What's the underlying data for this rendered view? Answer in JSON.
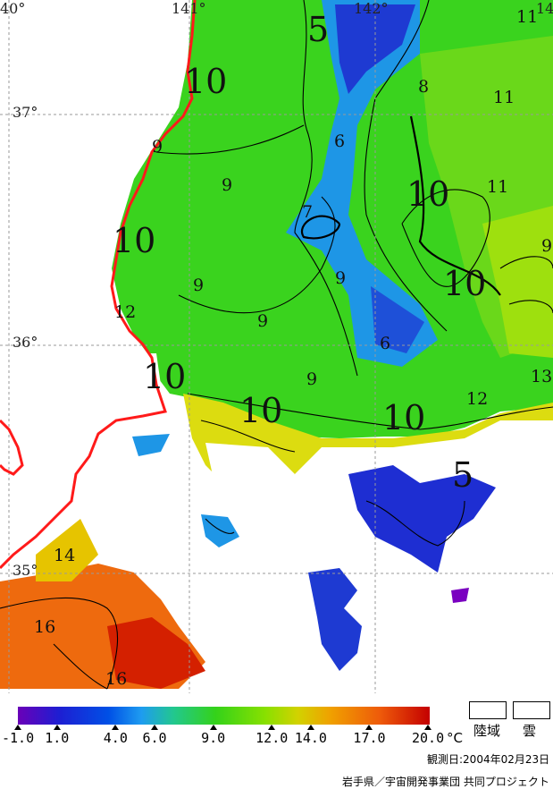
{
  "map": {
    "lon_labels": [
      "40°",
      "141°",
      "142°",
      "14"
    ],
    "lat_labels": [
      "37°",
      "36°",
      "35°"
    ],
    "isotherm_labels": [
      "10",
      "9",
      "9",
      "10",
      "9",
      "12",
      "10",
      "5",
      "8",
      "6",
      "7",
      "9",
      "9",
      "6",
      "9",
      "10",
      "10",
      "12",
      "13",
      "10",
      "11",
      "11",
      "11",
      "9",
      "10",
      "5",
      "14",
      "16",
      "16"
    ]
  },
  "legend": {
    "tick_labels": [
      "-1.0",
      "1.0",
      "4.0",
      "6.0",
      "9.0",
      "12.0",
      "14.0",
      "17.0",
      "20.0"
    ],
    "tick_values": [
      -1.0,
      1.0,
      4.0,
      6.0,
      9.0,
      12.0,
      14.0,
      17.0,
      20.0
    ],
    "unit": "°C",
    "land_label": "陸域",
    "cloud_label": "雲",
    "observation_date": "観測日:2004年02月23日",
    "credit": "岩手県／宇宙開発事業団 共同プロジェクト"
  },
  "colors": {
    "coastline": "#ff1a1a",
    "cold": "#1e2ed2",
    "mid": "#34d21a",
    "warm": "#ee5a0a"
  }
}
